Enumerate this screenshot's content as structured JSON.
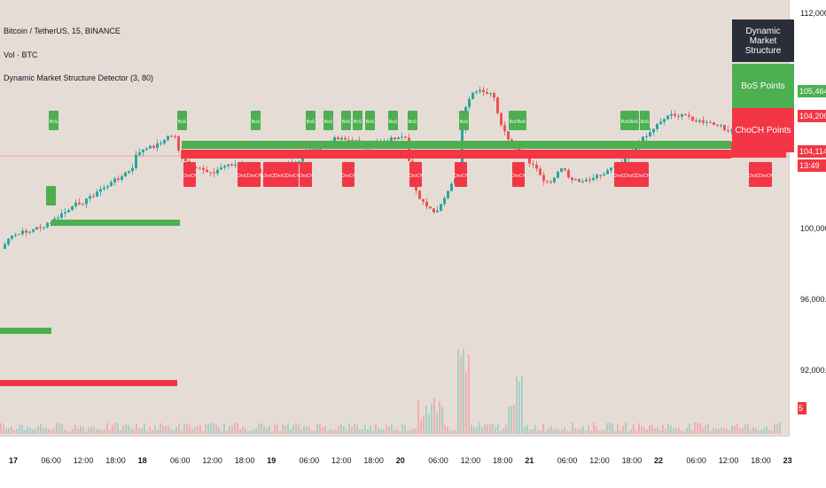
{
  "header": {
    "symbol_line": "Bitcoin / TetherUS, 15, BINANCE",
    "volume_line": "Vol · BTC",
    "indicator_line": "Dynamic Market Structure Detector (3, 80)"
  },
  "legend_panel": {
    "title": "Dynamic Market Structure",
    "bos_label": "BoS Points",
    "choch_label": "ChoCH Points"
  },
  "colors": {
    "background": "#e6dcd6",
    "bos": "#4caf50",
    "choch": "#f23645",
    "panel_dark": "#2a2e39",
    "candle_up": "#26a69a",
    "candle_down": "#ef5350"
  },
  "price_axis": {
    "labels": [
      "112,000.00",
      "100,000.00",
      "96,000.00",
      "92,000.00"
    ]
  },
  "price_tags": {
    "bos_price": "105,464.56",
    "choch_price": "104,200.52",
    "last_price": "104,114.49",
    "countdown": "13:49",
    "volume": "5"
  },
  "time_axis": {
    "labels": [
      "17",
      "06:00",
      "12:00",
      "18:00",
      "18",
      "06:00",
      "12:00",
      "18:00",
      "19",
      "06:00",
      "12:00",
      "18:00",
      "20",
      "06:00",
      "12:00",
      "18:00",
      "21",
      "06:00",
      "12:00",
      "18:00",
      "22",
      "06:00",
      "12:00",
      "18:00",
      "23"
    ]
  },
  "markers": {
    "bos_text": "BoS",
    "choch_text": "ChoCH"
  }
}
